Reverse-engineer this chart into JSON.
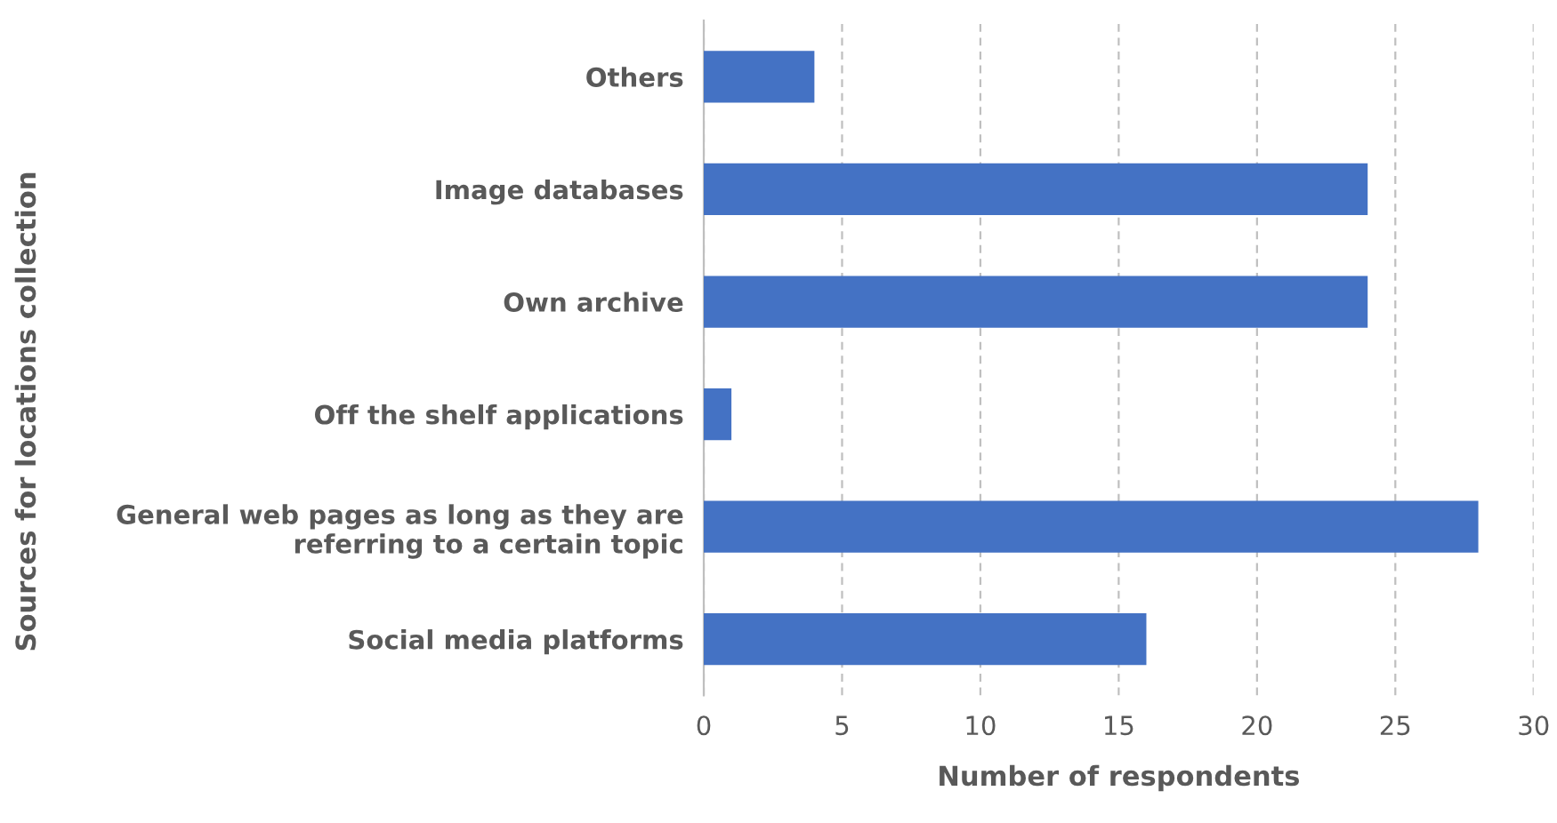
{
  "chart_data": {
    "type": "bar",
    "orientation": "horizontal",
    "xlabel": "Number of respondents",
    "ylabel": "Sources for locations collection",
    "categories": [
      "Others",
      "Image databases",
      "Own archive",
      "Off the shelf applications",
      "General web pages as long as they are\nreferring to a certain topic",
      "Social media platforms"
    ],
    "values": [
      4,
      24,
      24,
      1,
      28,
      16
    ],
    "color": "#4472c4",
    "xlim": [
      0,
      30
    ],
    "xticks": [
      0,
      5,
      10,
      15,
      20,
      25,
      30
    ],
    "grid": "x"
  }
}
